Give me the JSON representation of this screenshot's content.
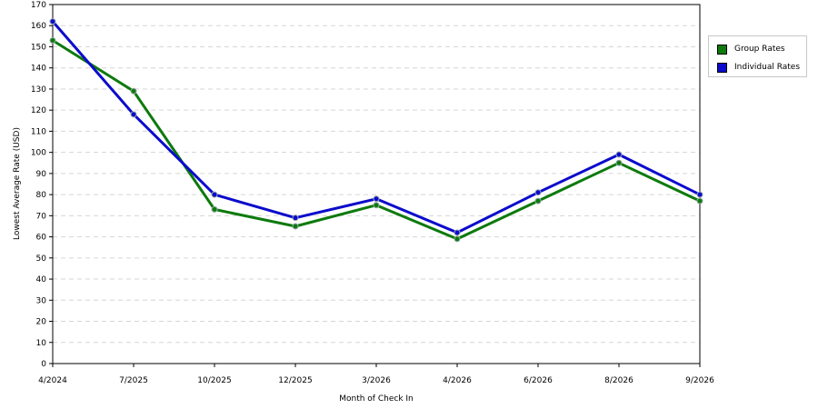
{
  "chart_data": {
    "type": "line",
    "title": "",
    "xlabel": "Month of Check In",
    "ylabel": "Lowest Average Rate (USD)",
    "ylim": [
      0,
      170
    ],
    "ytick_step": 10,
    "grid": true,
    "legend_position": "right",
    "categories": [
      "4/2024",
      "7/2025",
      "10/2025",
      "12/2025",
      "3/2026",
      "4/2026",
      "6/2026",
      "8/2026",
      "9/2026"
    ],
    "series": [
      {
        "name": "Group Rates",
        "color": "#0d7a0d",
        "values": [
          153,
          129,
          73,
          65,
          75,
          59,
          77,
          95,
          77
        ]
      },
      {
        "name": "Individual Rates",
        "color": "#0b0bcc",
        "values": [
          162,
          118,
          80,
          69,
          78,
          62,
          81,
          99,
          80
        ]
      }
    ]
  }
}
